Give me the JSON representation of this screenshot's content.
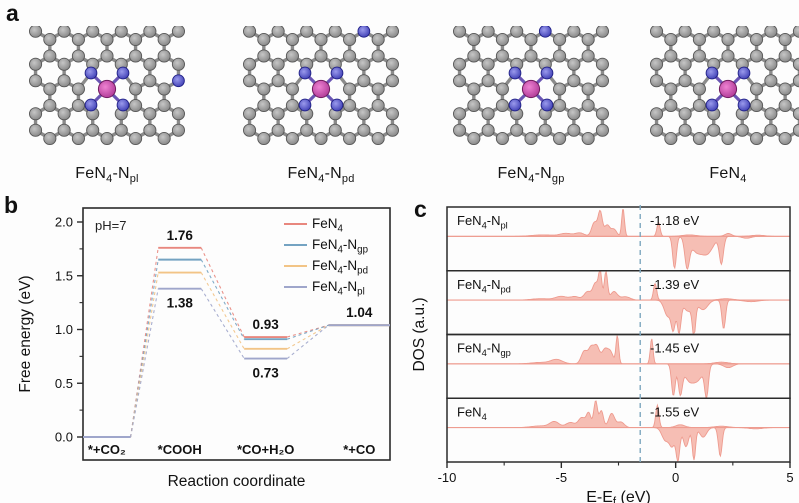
{
  "figure": {
    "background": "#fdfdfd"
  },
  "panel_a": {
    "letter": "a",
    "atom_colors": {
      "carbon": "#7d7d7d",
      "carbon_core": "#c6c6c6",
      "carbon_stroke": "#565656",
      "nitrogen": "#3434ae",
      "nitrogen_core": "#9a9aec",
      "nitrogen_stroke": "#1f1f85",
      "iron": "#a8308f",
      "iron_core": "#ee82d2",
      "iron_stroke": "#6e1c5e",
      "bond": "#8b8b8b",
      "fe_bond": "#6a55b4"
    },
    "molecules": [
      {
        "label": [
          {
            "t": "FeN"
          },
          {
            "t": "4",
            "sub": true
          },
          {
            "t": "-N"
          },
          {
            "t": "pl",
            "sub": true
          }
        ],
        "extra_n": [
          [
            64,
            -12
          ]
        ]
      },
      {
        "label": [
          {
            "t": "FeN"
          },
          {
            "t": "4",
            "sub": true
          },
          {
            "t": "-N"
          },
          {
            "t": "pd",
            "sub": true
          }
        ],
        "extra_n": [
          [
            38,
            -52
          ]
        ]
      },
      {
        "label": [
          {
            "t": "FeN"
          },
          {
            "t": "4",
            "sub": true
          },
          {
            "t": "-N"
          },
          {
            "t": "gp",
            "sub": true
          }
        ],
        "extra_n": [
          [
            20,
            -52
          ]
        ]
      },
      {
        "label": [
          {
            "t": "FeN"
          },
          {
            "t": "4",
            "sub": true
          }
        ],
        "extra_n": []
      }
    ]
  },
  "panel_b": {
    "letter": "b"
  },
  "panel_c": {
    "letter": "c"
  },
  "chart_data": [
    {
      "type": "line",
      "title": "Free energy diagram of CO2 reduction to CO",
      "xlabel": "Reaction coordinate",
      "ylabel": "Free energy (eV)",
      "ph_annotation": "pH=7",
      "states": [
        "*+CO₂",
        "*COOH",
        "*CO+H₂O",
        "*+CO"
      ],
      "ylim": [
        -0.21,
        2.13
      ],
      "yticks": [
        0.0,
        0.5,
        1.0,
        1.5,
        2.0
      ],
      "ytick_minor_step": 0.25,
      "legend_position": "top-right",
      "series": [
        {
          "name": [
            {
              "t": "FeN"
            },
            {
              "t": "4",
              "sub": true
            }
          ],
          "color": "#e8877e",
          "values": [
            0.0,
            1.76,
            0.93,
            1.04
          ]
        },
        {
          "name": [
            {
              "t": "FeN"
            },
            {
              "t": "4",
              "sub": true
            },
            {
              "t": "-N"
            },
            {
              "t": "gp",
              "sub": true
            }
          ],
          "color": "#74a3c2",
          "values": [
            0.0,
            1.65,
            0.91,
            1.04
          ]
        },
        {
          "name": [
            {
              "t": "FeN"
            },
            {
              "t": "4",
              "sub": true
            },
            {
              "t": "-N"
            },
            {
              "t": "pd",
              "sub": true
            }
          ],
          "color": "#f2c486",
          "values": [
            0.0,
            1.53,
            0.82,
            1.04
          ]
        },
        {
          "name": [
            {
              "t": "FeN"
            },
            {
              "t": "4",
              "sub": true
            },
            {
              "t": "-N"
            },
            {
              "t": "pl",
              "sub": true
            }
          ],
          "color": "#9fa6cb",
          "values": [
            0.0,
            1.38,
            0.73,
            1.04
          ]
        }
      ],
      "value_labels": [
        {
          "text": "1.76",
          "state": 1,
          "value": 1.76,
          "side": "above"
        },
        {
          "text": "1.38",
          "state": 1,
          "value": 1.38,
          "side": "below"
        },
        {
          "text": "0.93",
          "state": 2,
          "value": 0.93,
          "side": "above"
        },
        {
          "text": "0.73",
          "state": 2,
          "value": 0.73,
          "side": "below"
        },
        {
          "text": "1.04",
          "state": 3,
          "value": 1.04,
          "side": "above"
        }
      ],
      "level_spans": [
        [
          0.0,
          0.155
        ],
        [
          0.245,
          0.385
        ],
        [
          0.525,
          0.665
        ],
        [
          0.8,
          1.0
        ]
      ]
    },
    {
      "type": "area",
      "title": "Spin-polarized DOS",
      "xlabel": [
        {
          "t": "E-E"
        },
        {
          "t": "f",
          "sub": true
        },
        {
          "t": " (eV)"
        }
      ],
      "ylabel": "DOS (a.u.)",
      "xlim": [
        -10,
        5
      ],
      "xticks": [
        -10,
        -5,
        0,
        5
      ],
      "xticks_minor": [
        -7.5,
        -2.5,
        2.5
      ],
      "fermi_dash_x": -1.55,
      "dash_color": "#7fa8bf",
      "curve_fill": "#f6beb4",
      "curve_stroke": "#ee9b8f",
      "panels": [
        {
          "name": [
            {
              "t": "FeN"
            },
            {
              "t": "4",
              "sub": true
            },
            {
              "t": "-N"
            },
            {
              "t": "pl",
              "sub": true
            }
          ],
          "dband_label": "-1.18 eV",
          "peaks_up": [
            [
              -5.8,
              0.05,
              0.5
            ],
            [
              -4.8,
              0.1,
              0.25
            ],
            [
              -4.2,
              0.12,
              0.2
            ],
            [
              -3.55,
              0.5,
              0.12
            ],
            [
              -3.3,
              0.85,
              0.09
            ],
            [
              -3.0,
              0.4,
              0.12
            ],
            [
              -2.7,
              0.25,
              0.12
            ],
            [
              -2.3,
              1.0,
              0.06
            ],
            [
              -0.75,
              0.5,
              0.07
            ],
            [
              0.6,
              0.05,
              0.3
            ],
            [
              2.3,
              0.1,
              0.15
            ],
            [
              3.6,
              0.04,
              0.3
            ]
          ],
          "peaks_down": [
            [
              -0.05,
              1.0,
              0.08
            ],
            [
              0.5,
              0.9,
              0.1
            ],
            [
              0.9,
              0.45,
              0.25
            ],
            [
              1.4,
              0.5,
              0.25
            ],
            [
              2.0,
              0.85,
              0.09
            ],
            [
              3.1,
              0.06,
              0.2
            ]
          ]
        },
        {
          "name": [
            {
              "t": "FeN"
            },
            {
              "t": "4",
              "sub": true
            },
            {
              "t": "-N"
            },
            {
              "t": "pd",
              "sub": true
            }
          ],
          "dband_label": "-1.39 eV",
          "peaks_up": [
            [
              -5.9,
              0.05,
              0.4
            ],
            [
              -5.0,
              0.13,
              0.25
            ],
            [
              -4.4,
              0.12,
              0.2
            ],
            [
              -3.85,
              0.3,
              0.15
            ],
            [
              -3.5,
              0.6,
              0.12
            ],
            [
              -3.3,
              0.95,
              0.07
            ],
            [
              -3.05,
              1.0,
              0.07
            ],
            [
              -2.7,
              0.3,
              0.15
            ],
            [
              -2.2,
              0.12,
              0.2
            ],
            [
              -0.9,
              0.6,
              0.07
            ],
            [
              2.2,
              0.05,
              0.3
            ]
          ],
          "peaks_down": [
            [
              -0.35,
              0.5,
              0.15
            ],
            [
              -0.1,
              0.85,
              0.09
            ],
            [
              0.15,
              1.0,
              0.08
            ],
            [
              0.55,
              0.35,
              0.2
            ],
            [
              0.8,
              0.95,
              0.07
            ],
            [
              1.2,
              0.3,
              0.2
            ],
            [
              2.1,
              0.9,
              0.08
            ],
            [
              3.3,
              0.05,
              0.3
            ]
          ]
        },
        {
          "name": [
            {
              "t": "FeN"
            },
            {
              "t": "4",
              "sub": true
            },
            {
              "t": "-N"
            },
            {
              "t": "gp",
              "sub": true
            }
          ],
          "dband_label": "-1.45 eV",
          "peaks_up": [
            [
              -5.9,
              0.05,
              0.4
            ],
            [
              -5.2,
              0.15,
              0.25
            ],
            [
              -4.0,
              0.45,
              0.13
            ],
            [
              -3.7,
              0.55,
              0.12
            ],
            [
              -3.45,
              0.6,
              0.12
            ],
            [
              -3.1,
              0.5,
              0.13
            ],
            [
              -2.85,
              0.4,
              0.12
            ],
            [
              -2.55,
              1.0,
              0.06
            ],
            [
              -1.05,
              0.9,
              0.06
            ],
            [
              2.0,
              0.06,
              0.3
            ]
          ],
          "peaks_down": [
            [
              -0.1,
              1.0,
              0.08
            ],
            [
              0.2,
              0.9,
              0.09
            ],
            [
              0.55,
              0.4,
              0.2
            ],
            [
              0.95,
              0.5,
              0.25
            ],
            [
              1.35,
              0.95,
              0.08
            ],
            [
              2.3,
              0.12,
              0.2
            ]
          ]
        },
        {
          "name": [
            {
              "t": "FeN"
            },
            {
              "t": "4",
              "sub": true
            }
          ],
          "dband_label": "-1.55 eV",
          "peaks_up": [
            [
              -5.9,
              0.06,
              0.4
            ],
            [
              -5.3,
              0.2,
              0.2
            ],
            [
              -4.6,
              0.18,
              0.2
            ],
            [
              -4.1,
              0.35,
              0.15
            ],
            [
              -3.8,
              0.5,
              0.1
            ],
            [
              -3.5,
              0.95,
              0.08
            ],
            [
              -3.25,
              0.6,
              0.09
            ],
            [
              -2.8,
              0.5,
              0.13
            ],
            [
              -2.4,
              0.2,
              0.15
            ],
            [
              -0.8,
              0.8,
              0.07
            ],
            [
              0.2,
              0.1,
              0.2
            ],
            [
              2.0,
              0.05,
              0.3
            ]
          ],
          "peaks_down": [
            [
              -0.45,
              0.4,
              0.15
            ],
            [
              -0.15,
              0.55,
              0.12
            ],
            [
              0.1,
              1.0,
              0.08
            ],
            [
              0.45,
              0.6,
              0.12
            ],
            [
              0.8,
              1.0,
              0.07
            ],
            [
              1.2,
              0.3,
              0.15
            ],
            [
              1.95,
              0.9,
              0.08
            ],
            [
              3.5,
              0.04,
              0.3
            ]
          ]
        }
      ]
    }
  ]
}
